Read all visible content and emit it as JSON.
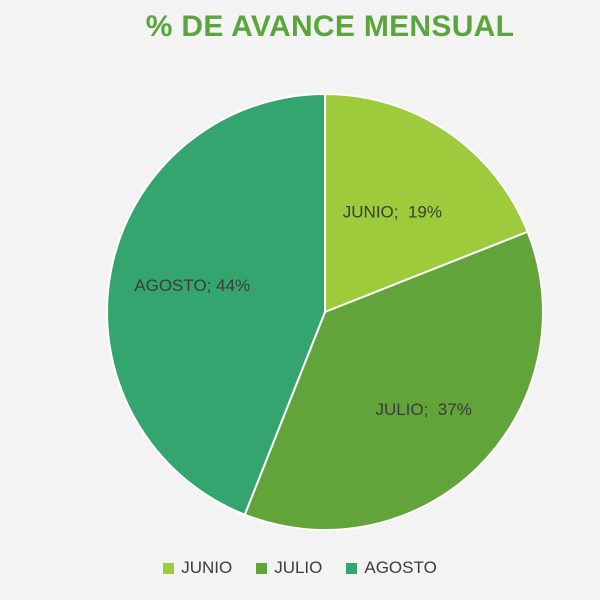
{
  "chart_data": {
    "type": "pie",
    "title": "% DE AVANCE MENSUAL",
    "categories": [
      "JUNIO",
      "JULIO",
      "AGOSTO"
    ],
    "values": [
      19,
      37,
      44
    ],
    "labels": [
      "JUNIO;  19%",
      "JULIO;  37%",
      "AGOSTO; 44%"
    ],
    "colors": [
      "#9dcb3b",
      "#62a33a",
      "#35a56f"
    ],
    "start_angle_deg": 0,
    "direction": "clockwise",
    "legend_position": "bottom"
  }
}
